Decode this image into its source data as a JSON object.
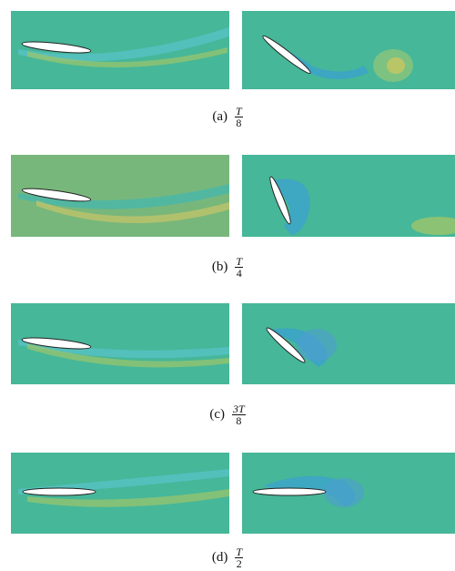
{
  "figure": {
    "captions": [
      {
        "label": "(a)",
        "numerator": "T",
        "denominator": "8"
      },
      {
        "label": "(b)",
        "numerator": "T",
        "denominator": "4"
      },
      {
        "label": "(c)",
        "numerator": "3T",
        "denominator": "8"
      },
      {
        "label": "(d)",
        "numerator": "T",
        "denominator": "2"
      }
    ]
  }
}
